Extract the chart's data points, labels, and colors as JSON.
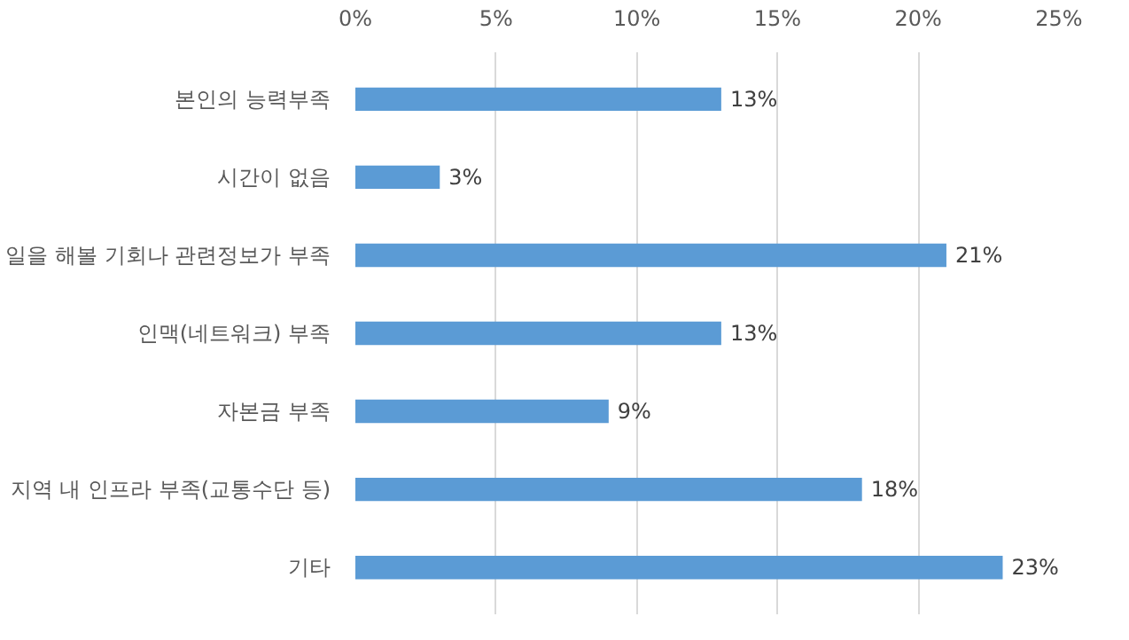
{
  "chart_data": {
    "type": "bar",
    "orientation": "horizontal",
    "categories": [
      "본인의 능력부족",
      "시간이 없음",
      "일을 해볼 기회나 관련정보가 부족",
      "인맥(네트워크) 부족",
      "자본금 부족",
      "지역 내 인프라 부족(교통수단 등)",
      "기타"
    ],
    "values": [
      13,
      3,
      21,
      13,
      9,
      18,
      23
    ],
    "color": "#5b9bd5",
    "value_labels": [
      "13%",
      "3%",
      "21%",
      "13%",
      "9%",
      "18%",
      "23%"
    ],
    "xlim": [
      0,
      25
    ],
    "xticks": [
      {
        "value": 0,
        "label": "0%"
      },
      {
        "value": 5,
        "label": "5%"
      },
      {
        "value": 10,
        "label": "10%"
      },
      {
        "value": 15,
        "label": "15%"
      },
      {
        "value": 20,
        "label": "20%"
      },
      {
        "value": 25,
        "label": "25%"
      }
    ],
    "grid": "x"
  }
}
